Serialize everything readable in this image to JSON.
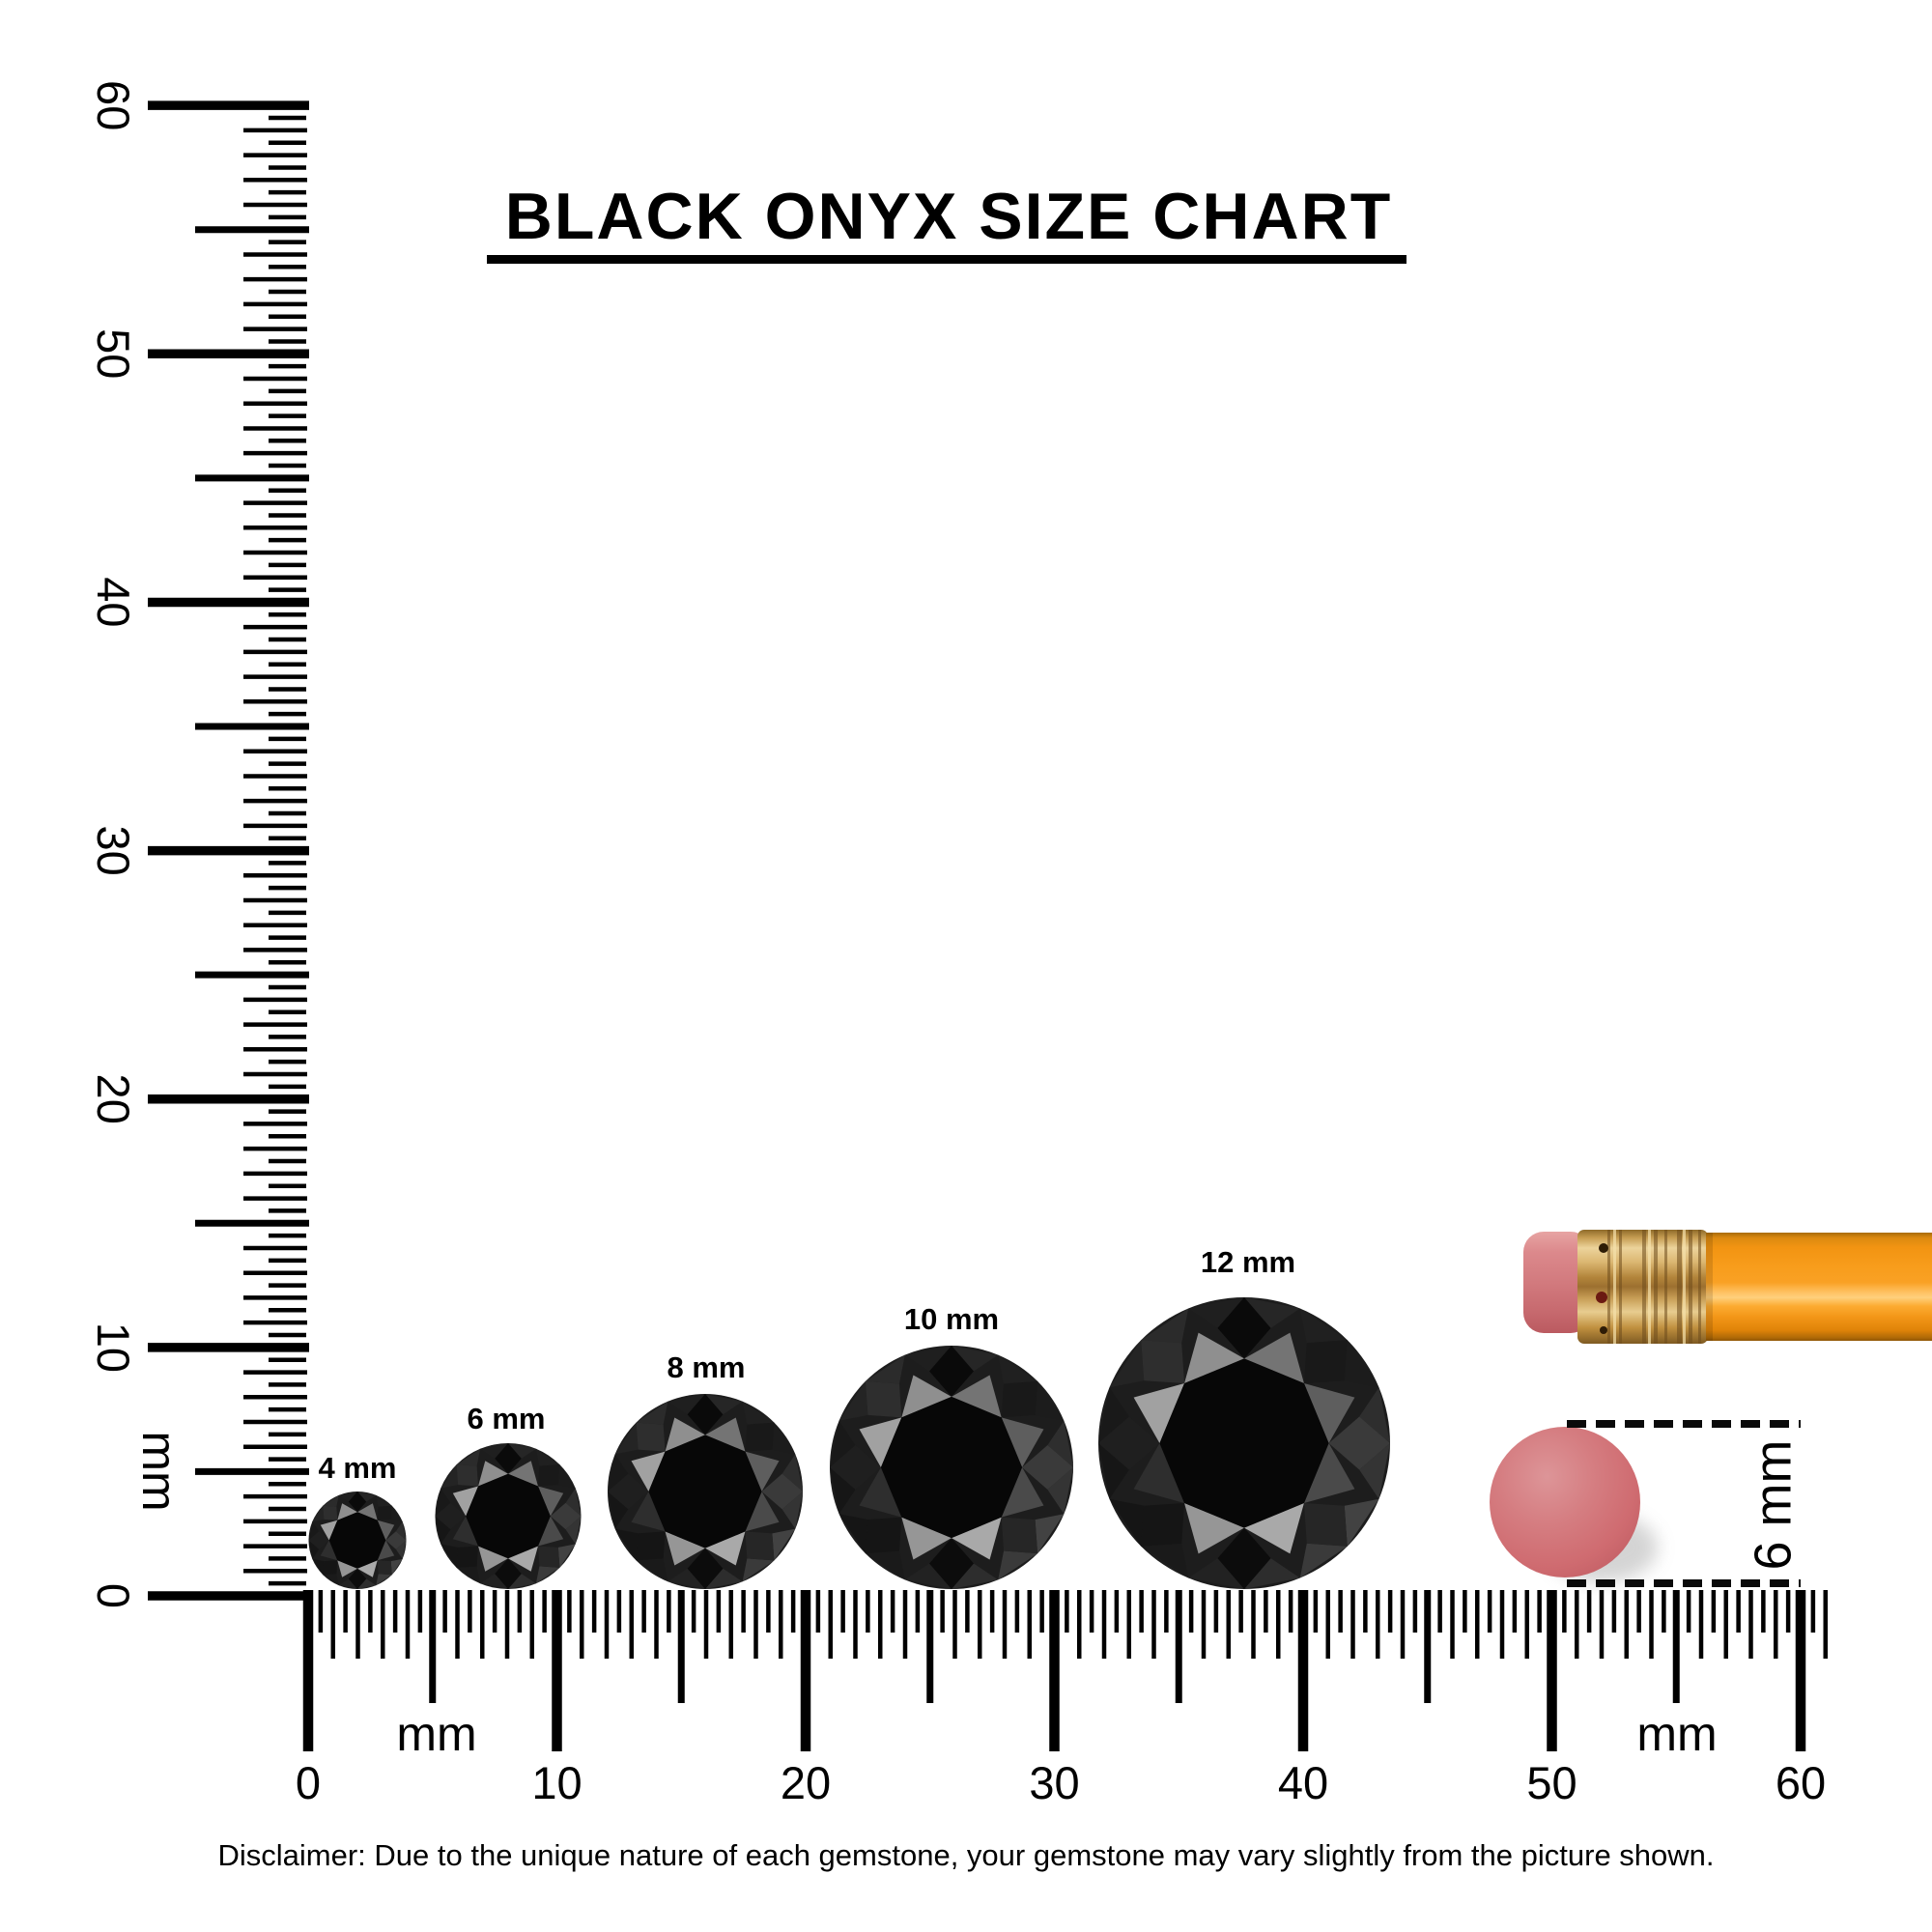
{
  "title": "BLACK ONYX SIZE CHART",
  "disclaimer": "Disclaimer: Due to the unique nature of each gemstone, your gemstone may vary slightly from the picture shown.",
  "rulers": {
    "vertical": {
      "unit_label": "mm",
      "tick_labels": [
        "0",
        "10",
        "20",
        "30",
        "40",
        "50",
        "60"
      ],
      "max_mm": 60
    },
    "horizontal": {
      "unit_label_left": "mm",
      "unit_label_right": "mm",
      "tick_labels": [
        "0",
        "10",
        "20",
        "30",
        "40",
        "50",
        "60"
      ],
      "max_mm": 60
    }
  },
  "gems": [
    {
      "label": "4 mm",
      "size_mm": 4
    },
    {
      "label": "6 mm",
      "size_mm": 6
    },
    {
      "label": "8 mm",
      "size_mm": 8
    },
    {
      "label": "10 mm",
      "size_mm": 10
    },
    {
      "label": "12 mm",
      "size_mm": 12
    }
  ],
  "reference_objects": {
    "pencil": {
      "name": "pencil"
    },
    "eraser_top": {
      "label": "6 mm",
      "diameter_mm": 6
    }
  },
  "colors": {
    "ink": "#000000",
    "pencil_body": "#f89d1c",
    "pencil_ferrule": "#d4a558",
    "pencil_eraser": "#d27a7e",
    "eraser_top": "#cf6b70",
    "gem_base": "#1d1d1d",
    "gem_highlight": "#a0a0a0"
  }
}
